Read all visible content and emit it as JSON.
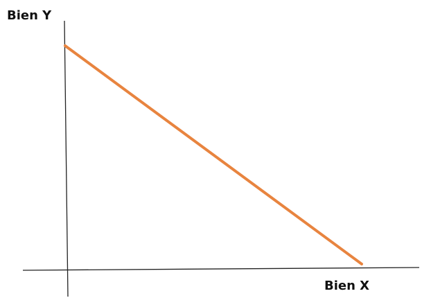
{
  "labels": {
    "y_axis": "Bien Y",
    "x_axis": "Bien X"
  }
}
